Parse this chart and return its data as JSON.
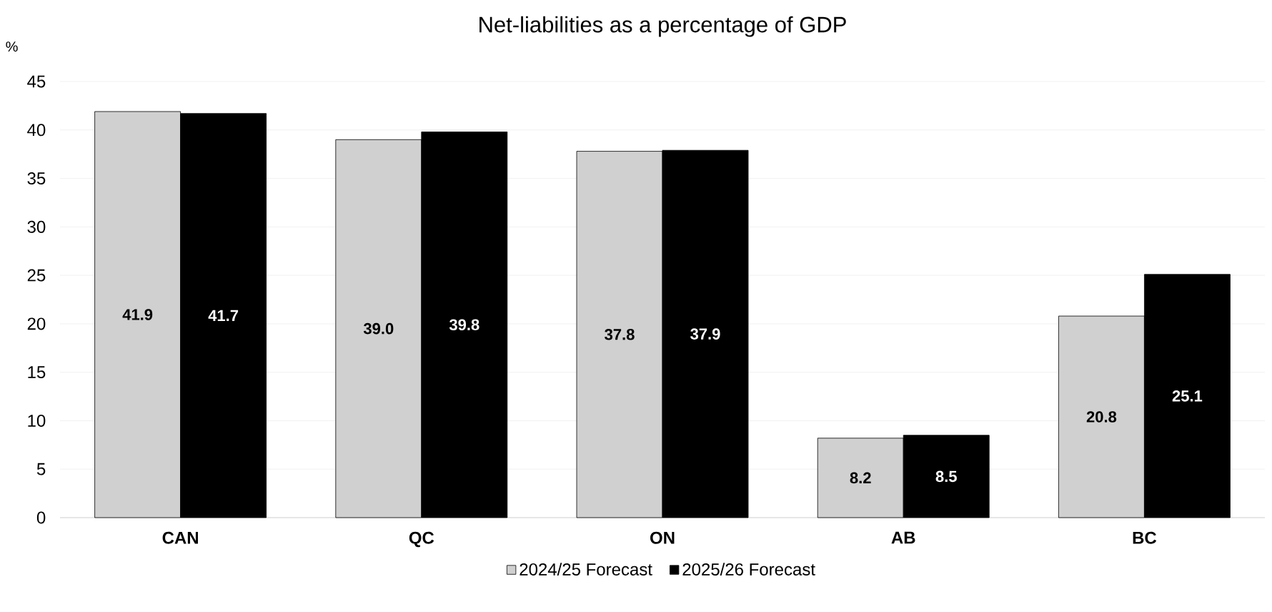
{
  "chart_data": {
    "type": "bar",
    "title": "Net-liabilities as a percentage of GDP",
    "ylabel": "%",
    "categories": [
      "CAN",
      "QC",
      "ON",
      "AB",
      "BC"
    ],
    "series": [
      {
        "name": "2024/25 Forecast",
        "color": "#d0d0d0",
        "values": [
          41.9,
          39.0,
          37.8,
          8.2,
          20.8
        ],
        "value_labels": [
          "41.9",
          "39.0",
          "37.8",
          "8.2",
          "20.8"
        ]
      },
      {
        "name": "2025/26 Forecast",
        "color": "#000000",
        "values": [
          41.7,
          39.8,
          37.9,
          8.5,
          25.1
        ],
        "value_labels": [
          "41.7",
          "39.8",
          "37.9",
          "8.5",
          "25.1"
        ]
      }
    ],
    "ylim": [
      0,
      45
    ],
    "yticks": [
      0,
      5,
      10,
      15,
      20,
      25,
      30,
      35,
      40,
      45
    ],
    "grid": "y",
    "legend": "bottom"
  }
}
